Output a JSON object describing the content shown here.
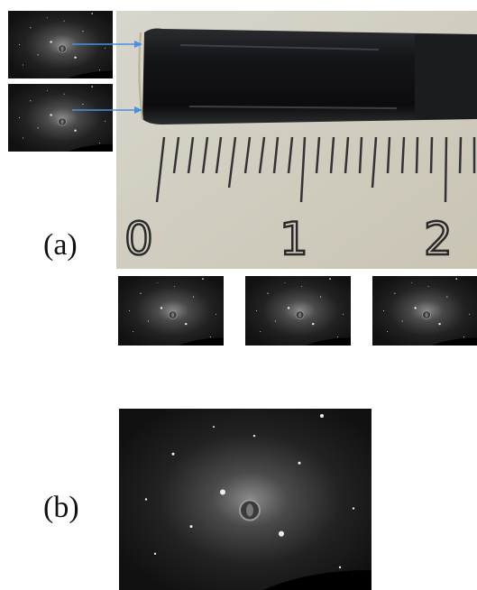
{
  "panels": [
    {
      "label": "(a)"
    },
    {
      "label": "(b)"
    }
  ],
  "ruler": {
    "labels": [
      "0",
      "1",
      "2"
    ]
  }
}
